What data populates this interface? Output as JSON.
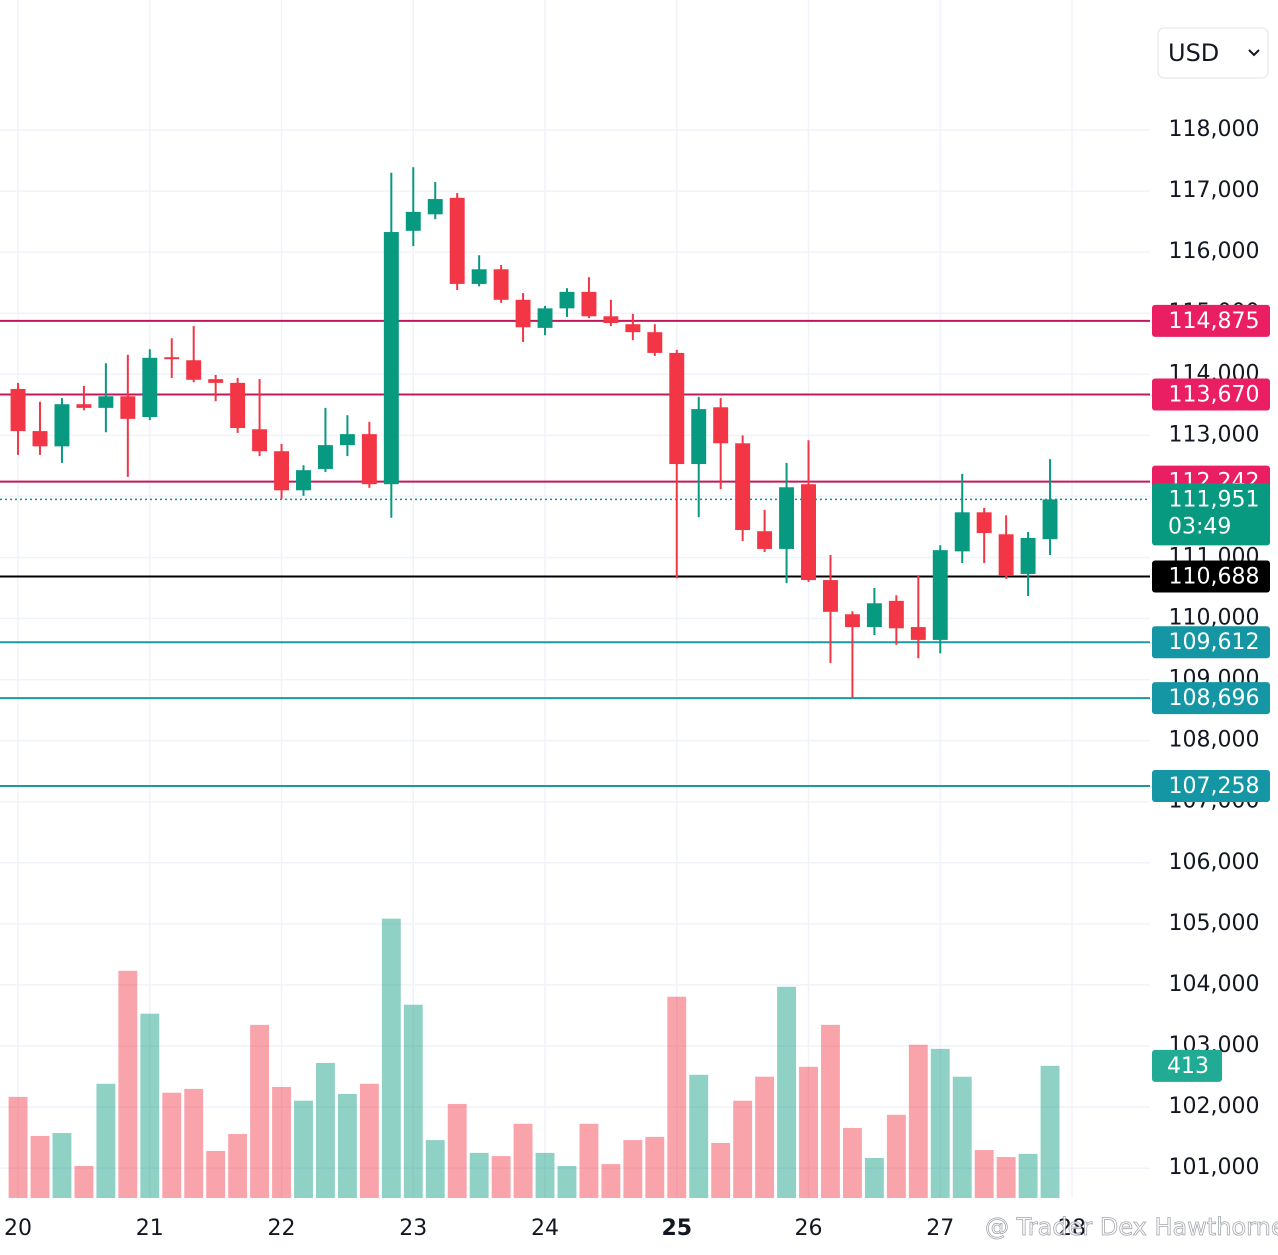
{
  "chart_data": {
    "type": "candlestick",
    "currency": "USD",
    "watermark": "@ Trader Dex Hawthorne",
    "x": [
      20,
      20.1667,
      20.3333,
      20.5,
      20.6667,
      20.8333,
      21,
      21.1667,
      21.3333,
      21.5,
      21.6667,
      21.8333,
      22,
      22.1667,
      22.3333,
      22.5,
      22.6667,
      22.8333,
      23,
      23.1667,
      23.3333,
      23.5,
      23.6667,
      23.8333,
      24,
      24.1667,
      24.3333,
      24.5,
      24.6667,
      24.8333,
      25,
      25.1667,
      25.3333,
      25.5,
      25.6667,
      25.8333,
      26,
      26.1667,
      26.3333,
      26.5,
      26.6667,
      26.8333,
      27,
      27.1667,
      27.3333,
      27.5,
      27.6667,
      27.8333
    ],
    "open": [
      113760,
      113070,
      112820,
      113510,
      113450,
      113640,
      113300,
      114280,
      114230,
      113920,
      113860,
      113100,
      112740,
      112100,
      112450,
      112840,
      113020,
      112200,
      116350,
      116620,
      116890,
      115480,
      115720,
      115220,
      114760,
      115080,
      115350,
      114950,
      114820,
      114690,
      114350,
      112530,
      113460,
      112870,
      111430,
      111140,
      112200,
      110630,
      110070,
      109860,
      110290,
      109860,
      109650,
      111100,
      111740,
      111380,
      110730,
      111300
    ],
    "high": [
      113860,
      113550,
      113610,
      113810,
      114180,
      114320,
      114410,
      114590,
      114790,
      113990,
      113940,
      113920,
      112860,
      112510,
      113450,
      113330,
      113220,
      117300,
      117390,
      117150,
      116970,
      115950,
      115790,
      115330,
      115120,
      115410,
      115590,
      115220,
      114990,
      114820,
      114400,
      113630,
      113610,
      113000,
      111780,
      112550,
      112920,
      111040,
      110120,
      110500,
      110380,
      110710,
      111200,
      112370,
      111810,
      111690,
      111420,
      112610
    ],
    "low": [
      112680,
      112680,
      112550,
      113410,
      113050,
      112320,
      113250,
      113940,
      113870,
      113560,
      113040,
      112660,
      111960,
      112010,
      112400,
      112660,
      112140,
      111650,
      116100,
      116540,
      115380,
      115440,
      115170,
      114530,
      114640,
      114940,
      114920,
      114790,
      114560,
      114300,
      110660,
      111660,
      112120,
      111270,
      111090,
      110580,
      110600,
      109270,
      108700,
      109730,
      109570,
      109350,
      109430,
      110910,
      110910,
      110650,
      110370,
      111040
    ],
    "close": [
      113070,
      112820,
      113510,
      113450,
      113640,
      113270,
      114270,
      114250,
      113910,
      113860,
      113120,
      112740,
      112100,
      112430,
      112840,
      113020,
      112200,
      116330,
      116660,
      116870,
      115480,
      115720,
      115220,
      114770,
      115080,
      115350,
      114950,
      114840,
      114690,
      114350,
      112530,
      113430,
      112870,
      111450,
      111140,
      112150,
      110630,
      110110,
      109860,
      110250,
      109840,
      109650,
      111120,
      111740,
      111400,
      110710,
      111320,
      111951
    ],
    "up_color": "#089981",
    "down_color": "#f23645",
    "xlim": [
      19.863,
      28.592
    ],
    "xticks": [
      20,
      21,
      22,
      23,
      24,
      25,
      26,
      27,
      28
    ],
    "ylim": [
      100510,
      120130
    ],
    "yticks": [
      {
        "value": 101000,
        "label": "101,000"
      },
      {
        "value": 102000,
        "label": "102,000"
      },
      {
        "value": 103000,
        "label": "103,000"
      },
      {
        "value": 104000,
        "label": "104,000"
      },
      {
        "value": 105000,
        "label": "105,000"
      },
      {
        "value": 106000,
        "label": "106,000"
      },
      {
        "value": 107000,
        "label": "107,000"
      },
      {
        "value": 108000,
        "label": "108,000"
      },
      {
        "value": 109000,
        "label": "109,000"
      },
      {
        "value": 110000,
        "label": "110,000"
      },
      {
        "value": 111000,
        "label": "111,000"
      },
      {
        "value": 112000,
        "label": "112,000"
      },
      {
        "value": 113000,
        "label": "113,000"
      },
      {
        "value": 114000,
        "label": "114,000"
      },
      {
        "value": 115000,
        "label": "115,000"
      },
      {
        "value": 116000,
        "label": "116,000"
      },
      {
        "value": 117000,
        "label": "117,000"
      },
      {
        "value": 118000,
        "label": "118,000"
      }
    ],
    "grid": true,
    "volume": {
      "values": [
        316,
        194,
        203,
        100,
        357,
        710,
        576,
        329,
        341,
        147,
        200,
        541,
        347,
        304,
        422,
        325,
        357,
        873,
        604,
        181,
        294,
        141,
        131,
        232,
        141,
        100,
        232,
        106,
        181,
        191,
        629,
        385,
        172,
        304,
        379,
        660,
        410,
        541,
        219,
        125,
        260,
        479,
        466,
        379,
        150,
        128,
        138,
        413
      ],
      "ylim": [
        0,
        1000
      ],
      "label_color": "#22ab94"
    },
    "price_lines": [
      {
        "value": 114875,
        "label": "114,875",
        "color": "#c2185b",
        "label_color": "#e91e63"
      },
      {
        "value": 113670,
        "label": "113,670",
        "color": "#c2185b",
        "label_color": "#e91e63"
      },
      {
        "value": 112242,
        "label": "112,242",
        "color": "#c2185b",
        "label_color": "#e91e63"
      },
      {
        "value": 110688,
        "label": "110,688",
        "color": "#000000",
        "label_color": "#000000"
      },
      {
        "value": 109612,
        "label": "109,612",
        "color": "#1a9aa0",
        "label_color": "#1596a4"
      },
      {
        "value": 108696,
        "label": "108,696",
        "color": "#1a9aa0",
        "label_color": "#1596a4"
      },
      {
        "value": 107258,
        "label": "107,258",
        "color": "#1a9aa0",
        "label_color": "#1596a4"
      }
    ],
    "last_price": {
      "value": 111951,
      "label": "111,951",
      "countdown": "03:49",
      "color": "#089981"
    }
  }
}
